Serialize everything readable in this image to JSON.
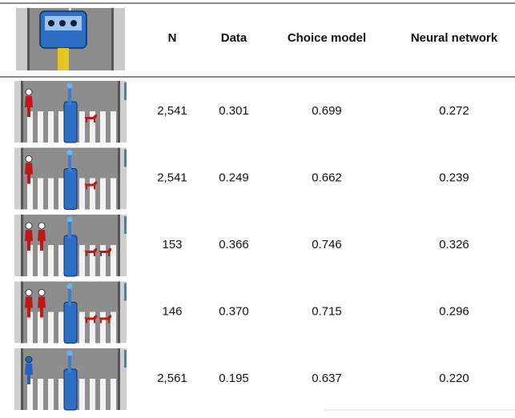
{
  "table": {
    "header": [
      "N",
      "Data",
      "Choice model",
      "Neural network"
    ],
    "rows": [
      [
        "2,541",
        "0.301",
        "0.699",
        "0.272"
      ],
      [
        "2,541",
        "0.249",
        "0.662",
        "0.239"
      ],
      [
        "153",
        "0.366",
        "0.746",
        "0.326"
      ],
      [
        "146",
        "0.370",
        "0.715",
        "0.296"
      ],
      [
        "2,561",
        "0.195",
        "0.637",
        "0.220"
      ]
    ]
  }
}
